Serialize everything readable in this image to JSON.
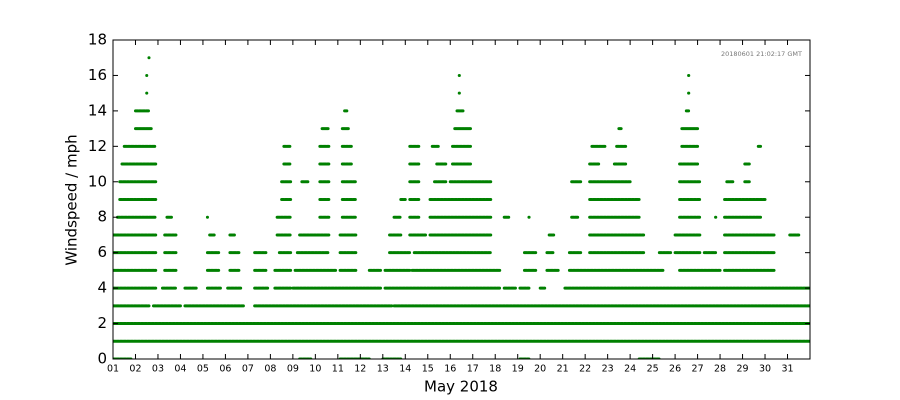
{
  "chart_data": {
    "type": "scatter",
    "annotation": "20180601 21:02:17 GMT",
    "xlabel": "May 2018",
    "ylabel": "Windspeed / mph",
    "color": "#008000",
    "xlim": [
      1,
      32
    ],
    "ylim": [
      0,
      18
    ],
    "yticks": [
      0,
      2,
      4,
      6,
      8,
      10,
      12,
      14,
      16,
      18
    ],
    "xticks": [
      {
        "value": 1,
        "label": "01"
      },
      {
        "value": 2,
        "label": "02"
      },
      {
        "value": 3,
        "label": "03"
      },
      {
        "value": 4,
        "label": "04"
      },
      {
        "value": 5,
        "label": "05"
      },
      {
        "value": 6,
        "label": "06"
      },
      {
        "value": 7,
        "label": "07"
      },
      {
        "value": 8,
        "label": "08"
      },
      {
        "value": 9,
        "label": "09"
      },
      {
        "value": 10,
        "label": "10"
      },
      {
        "value": 11,
        "label": "11"
      },
      {
        "value": 12,
        "label": "12"
      },
      {
        "value": 13,
        "label": "13"
      },
      {
        "value": 14,
        "label": "14"
      },
      {
        "value": 15,
        "label": "15"
      },
      {
        "value": 16,
        "label": "16"
      },
      {
        "value": 17,
        "label": "17"
      },
      {
        "value": 18,
        "label": "18"
      },
      {
        "value": 19,
        "label": "19"
      },
      {
        "value": 20,
        "label": "20"
      },
      {
        "value": 21,
        "label": "21"
      },
      {
        "value": 22,
        "label": "22"
      },
      {
        "value": 23,
        "label": "23"
      },
      {
        "value": 24,
        "label": "24"
      },
      {
        "value": 25,
        "label": "25"
      },
      {
        "value": 26,
        "label": "26"
      },
      {
        "value": 27,
        "label": "27"
      },
      {
        "value": 28,
        "label": "28"
      },
      {
        "value": 29,
        "label": "29"
      },
      {
        "value": 30,
        "label": "30"
      },
      {
        "value": 31,
        "label": "31"
      }
    ],
    "runs": [
      [
        1.0,
        1.8,
        0
      ],
      [
        9.3,
        9.8,
        0
      ],
      [
        11.1,
        12.4,
        0
      ],
      [
        13.0,
        13.8,
        0
      ],
      [
        19.1,
        19.5,
        0
      ],
      [
        24.4,
        25.3,
        0
      ],
      [
        1.0,
        32.0,
        1
      ],
      [
        1.0,
        32.0,
        2
      ],
      [
        1.0,
        2.6,
        3
      ],
      [
        2.8,
        4.0,
        3
      ],
      [
        4.2,
        6.8,
        3
      ],
      [
        7.3,
        13.4,
        3
      ],
      [
        13.5,
        32.0,
        3
      ],
      [
        1.0,
        2.9,
        4
      ],
      [
        3.2,
        3.8,
        4
      ],
      [
        4.2,
        4.7,
        4
      ],
      [
        5.2,
        5.8,
        4
      ],
      [
        6.1,
        6.7,
        4
      ],
      [
        7.3,
        7.9,
        4
      ],
      [
        8.2,
        8.9,
        4
      ],
      [
        9.0,
        12.9,
        4
      ],
      [
        13.1,
        18.2,
        4
      ],
      [
        18.4,
        18.9,
        4
      ],
      [
        19.1,
        19.5,
        4
      ],
      [
        20.0,
        20.2,
        4
      ],
      [
        21.1,
        32.0,
        4
      ],
      [
        1.0,
        2.9,
        5
      ],
      [
        3.3,
        3.8,
        5
      ],
      [
        5.2,
        5.7,
        5
      ],
      [
        6.2,
        6.6,
        5
      ],
      [
        7.3,
        7.8,
        5
      ],
      [
        8.2,
        8.9,
        5
      ],
      [
        9.1,
        10.9,
        5
      ],
      [
        11.1,
        11.8,
        5
      ],
      [
        12.4,
        12.9,
        5
      ],
      [
        13.1,
        14.2,
        5
      ],
      [
        14.3,
        18.2,
        5
      ],
      [
        19.3,
        19.8,
        5
      ],
      [
        20.3,
        20.8,
        5
      ],
      [
        21.3,
        25.5,
        5
      ],
      [
        26.2,
        28.0,
        5
      ],
      [
        28.2,
        30.4,
        5
      ],
      [
        1.0,
        2.9,
        6
      ],
      [
        3.3,
        3.8,
        6
      ],
      [
        5.2,
        5.7,
        6
      ],
      [
        6.2,
        6.6,
        6
      ],
      [
        7.3,
        7.8,
        6
      ],
      [
        8.4,
        8.9,
        6
      ],
      [
        9.2,
        10.6,
        6
      ],
      [
        11.1,
        11.8,
        6
      ],
      [
        13.3,
        14.2,
        6
      ],
      [
        14.4,
        17.8,
        6
      ],
      [
        19.3,
        19.8,
        6
      ],
      [
        20.3,
        20.6,
        6
      ],
      [
        21.3,
        21.8,
        6
      ],
      [
        22.2,
        24.6,
        6
      ],
      [
        25.3,
        25.8,
        6
      ],
      [
        26.0,
        27.1,
        6
      ],
      [
        27.3,
        27.8,
        6
      ],
      [
        28.2,
        30.4,
        6
      ],
      [
        1.0,
        2.9,
        7
      ],
      [
        3.3,
        3.8,
        7
      ],
      [
        5.3,
        5.5,
        7
      ],
      [
        6.2,
        6.4,
        7
      ],
      [
        8.3,
        8.9,
        7
      ],
      [
        9.3,
        10.6,
        7
      ],
      [
        11.1,
        11.8,
        7
      ],
      [
        13.3,
        13.8,
        7
      ],
      [
        14.2,
        14.9,
        7
      ],
      [
        15.1,
        17.8,
        7
      ],
      [
        20.4,
        20.6,
        7
      ],
      [
        22.2,
        24.6,
        7
      ],
      [
        26.0,
        27.1,
        7
      ],
      [
        28.2,
        30.4,
        7
      ],
      [
        31.1,
        31.5,
        7
      ],
      [
        1.2,
        2.9,
        8
      ],
      [
        3.4,
        3.6,
        8
      ],
      [
        5.2,
        5.2,
        8
      ],
      [
        8.3,
        8.9,
        8
      ],
      [
        10.2,
        10.6,
        8
      ],
      [
        11.2,
        11.8,
        8
      ],
      [
        13.5,
        13.8,
        8
      ],
      [
        14.2,
        14.6,
        8
      ],
      [
        15.1,
        17.8,
        8
      ],
      [
        18.4,
        18.6,
        8
      ],
      [
        19.5,
        19.5,
        8
      ],
      [
        21.4,
        21.7,
        8
      ],
      [
        22.2,
        24.4,
        8
      ],
      [
        26.2,
        27.1,
        8
      ],
      [
        27.8,
        27.8,
        8
      ],
      [
        28.2,
        29.8,
        8
      ],
      [
        1.3,
        2.9,
        9
      ],
      [
        8.5,
        8.9,
        9
      ],
      [
        10.2,
        10.6,
        9
      ],
      [
        11.2,
        11.8,
        9
      ],
      [
        13.8,
        14.0,
        9
      ],
      [
        14.2,
        14.6,
        9
      ],
      [
        15.1,
        17.8,
        9
      ],
      [
        22.2,
        24.4,
        9
      ],
      [
        26.2,
        27.1,
        9
      ],
      [
        28.2,
        30.0,
        9
      ],
      [
        1.3,
        2.9,
        10
      ],
      [
        8.5,
        8.9,
        10
      ],
      [
        9.4,
        9.7,
        10
      ],
      [
        10.2,
        10.6,
        10
      ],
      [
        11.2,
        11.8,
        10
      ],
      [
        14.2,
        14.6,
        10
      ],
      [
        15.3,
        15.8,
        10
      ],
      [
        16.0,
        17.8,
        10
      ],
      [
        21.4,
        21.8,
        10
      ],
      [
        22.2,
        24.0,
        10
      ],
      [
        26.2,
        27.1,
        10
      ],
      [
        28.3,
        28.6,
        10
      ],
      [
        29.1,
        29.3,
        10
      ],
      [
        1.4,
        2.9,
        11
      ],
      [
        8.6,
        8.9,
        11
      ],
      [
        10.2,
        10.6,
        11
      ],
      [
        11.2,
        11.6,
        11
      ],
      [
        14.2,
        14.6,
        11
      ],
      [
        15.4,
        15.8,
        11
      ],
      [
        16.1,
        16.9,
        11
      ],
      [
        22.2,
        22.6,
        11
      ],
      [
        23.3,
        23.8,
        11
      ],
      [
        26.2,
        27.0,
        11
      ],
      [
        29.1,
        29.3,
        11
      ],
      [
        1.5,
        2.9,
        12
      ],
      [
        8.6,
        8.9,
        12
      ],
      [
        10.2,
        10.6,
        12
      ],
      [
        11.2,
        11.6,
        12
      ],
      [
        14.2,
        14.6,
        12
      ],
      [
        15.2,
        15.5,
        12
      ],
      [
        16.1,
        16.9,
        12
      ],
      [
        22.3,
        22.9,
        12
      ],
      [
        23.4,
        23.8,
        12
      ],
      [
        26.3,
        27.0,
        12
      ],
      [
        29.7,
        29.8,
        12
      ],
      [
        2.0,
        2.7,
        13
      ],
      [
        10.3,
        10.6,
        13
      ],
      [
        11.2,
        11.5,
        13
      ],
      [
        16.2,
        16.9,
        13
      ],
      [
        23.5,
        23.6,
        13
      ],
      [
        26.3,
        27.0,
        13
      ],
      [
        2.0,
        2.6,
        14
      ],
      [
        11.3,
        11.4,
        14
      ],
      [
        16.3,
        16.6,
        14
      ],
      [
        26.5,
        26.6,
        14
      ],
      [
        2.5,
        2.5,
        15
      ],
      [
        16.4,
        16.4,
        15
      ],
      [
        26.6,
        26.6,
        15
      ],
      [
        2.5,
        2.5,
        16
      ],
      [
        16.4,
        16.4,
        16
      ],
      [
        26.6,
        26.6,
        16
      ],
      [
        2.6,
        2.6,
        17
      ]
    ]
  }
}
